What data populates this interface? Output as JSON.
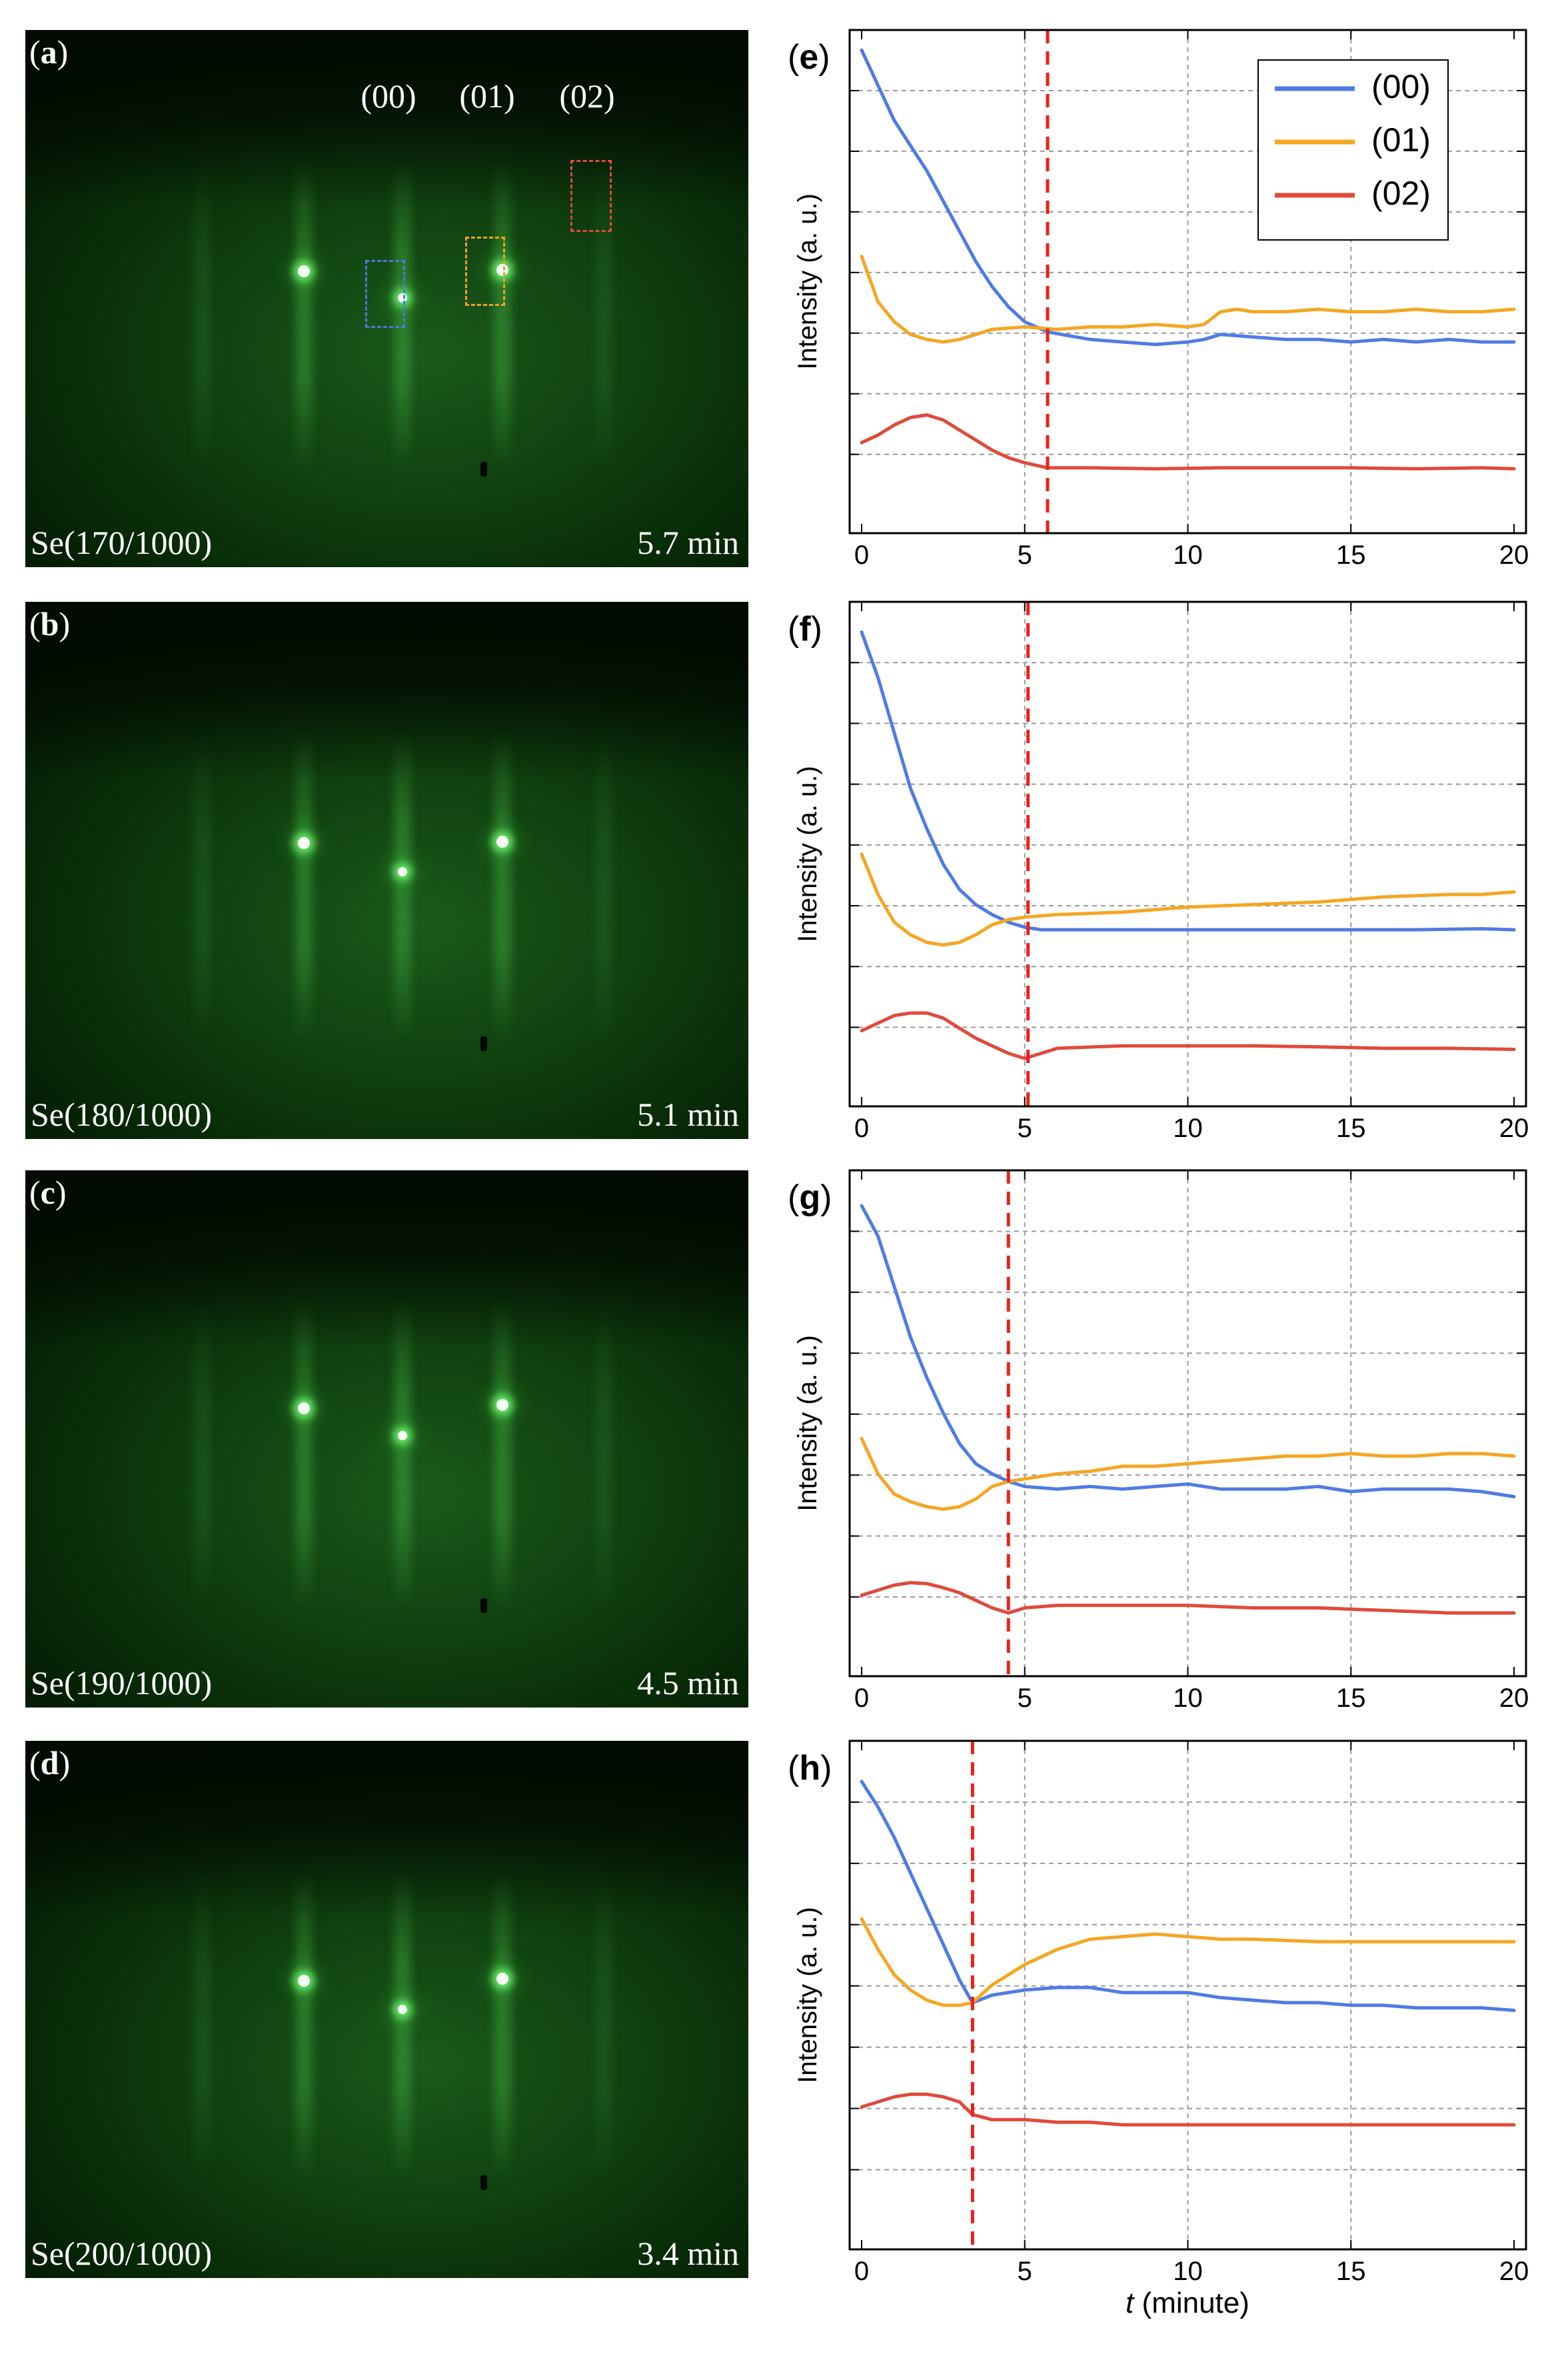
{
  "figure": {
    "rheed_panels": [
      {
        "label_open": "(",
        "label_letter": "a",
        "label_close": ")",
        "condition": "Se(170/1000)",
        "time": "5.7 min",
        "orders": [
          "(00)",
          "(01)",
          "(02)"
        ],
        "roi_colors": {
          "(00)": "#4a78e0",
          "(01)": "#f2a020",
          "(02)": "#e04a3a"
        }
      },
      {
        "label_open": "(",
        "label_letter": "b",
        "label_close": ")",
        "condition": "Se(180/1000)",
        "time": "5.1 min"
      },
      {
        "label_open": "(",
        "label_letter": "c",
        "label_close": ")",
        "condition": "Se(190/1000)",
        "time": "4.5 min"
      },
      {
        "label_open": "(",
        "label_letter": "d",
        "label_close": ")",
        "condition": "Se(200/1000)",
        "time": "3.4 min"
      }
    ],
    "shared_x_label_italic": "t",
    "shared_x_label_rest": " (minute)"
  },
  "chart_data": [
    {
      "type": "line",
      "panel": "(e)",
      "ylabel": "Intensity (a. u.)",
      "xlim": [
        0,
        20
      ],
      "ylim": [
        0,
        100
      ],
      "x_ticks": [
        0,
        5,
        10,
        15,
        20
      ],
      "grid": true,
      "marker_x": 5.7,
      "marker_color": "#e8231c",
      "legend": [
        "(00)",
        "(01)",
        "(02)"
      ],
      "legend_position": "top-right",
      "series": [
        {
          "name": "(00)",
          "color": "#4f7be3",
          "x": [
            0,
            0.5,
            1,
            1.5,
            2,
            2.5,
            3,
            3.5,
            4,
            4.5,
            5,
            5.7,
            7,
            8,
            9,
            10,
            10.5,
            11,
            12,
            13,
            14,
            15,
            16,
            17,
            18,
            19,
            20
          ],
          "y": [
            96,
            89,
            82,
            77,
            72,
            66,
            60,
            54,
            49,
            45,
            42,
            40,
            38.5,
            38,
            37.5,
            38,
            38.5,
            39.5,
            39,
            38.5,
            38.5,
            38,
            38.5,
            38,
            38.5,
            38,
            38
          ]
        },
        {
          "name": "(01)",
          "color": "#f5a623",
          "x": [
            0,
            0.5,
            1,
            1.5,
            2,
            2.5,
            3,
            3.5,
            4,
            5,
            6,
            7,
            8,
            9,
            10,
            10.5,
            11,
            11.5,
            12,
            13,
            14,
            15,
            16,
            17,
            18,
            19,
            20
          ],
          "y": [
            55,
            46,
            42,
            39.5,
            38.5,
            38,
            38.5,
            39.5,
            40.5,
            41,
            40.5,
            41,
            41,
            41.5,
            41,
            41.5,
            44,
            44.5,
            44,
            44,
            44.5,
            44,
            44,
            44.5,
            44,
            44,
            44.5
          ]
        },
        {
          "name": "(02)",
          "color": "#e04a3a",
          "x": [
            0,
            0.5,
            1,
            1.5,
            2,
            2.5,
            3,
            3.5,
            4,
            4.5,
            5,
            5.7,
            7,
            9,
            11,
            13,
            15,
            17,
            19,
            20
          ],
          "y": [
            18,
            19.5,
            21.5,
            23,
            23.5,
            22.5,
            20.5,
            18.5,
            16.5,
            15,
            14,
            13,
            13,
            12.8,
            13,
            13,
            13,
            12.8,
            13,
            12.8
          ]
        }
      ]
    },
    {
      "type": "line",
      "panel": "(f)",
      "ylabel": "Intensity (a. u.)",
      "xlim": [
        0,
        20
      ],
      "ylim": [
        0,
        100
      ],
      "x_ticks": [
        0,
        5,
        10,
        15,
        20
      ],
      "grid": true,
      "marker_x": 5.1,
      "marker_color": "#e8231c",
      "series": [
        {
          "name": "(00)",
          "color": "#4f7be3",
          "x": [
            0,
            0.5,
            1,
            1.5,
            2,
            2.5,
            3,
            3.5,
            4,
            4.5,
            5,
            5.5,
            7,
            9,
            11,
            13,
            15,
            17,
            19,
            20
          ],
          "y": [
            94,
            85,
            74,
            63,
            55,
            48,
            43,
            40,
            38,
            36.5,
            35.5,
            35,
            35,
            35,
            35,
            35,
            35,
            35,
            35.2,
            35
          ]
        },
        {
          "name": "(01)",
          "color": "#f5a623",
          "x": [
            0,
            0.5,
            1,
            1.5,
            2,
            2.5,
            3,
            3.5,
            4,
            4.5,
            5,
            6,
            8,
            10,
            12,
            14,
            16,
            18,
            19,
            20
          ],
          "y": [
            50,
            42,
            36.5,
            34,
            32.5,
            32,
            32.5,
            34,
            36,
            37,
            37.5,
            38,
            38.5,
            39.5,
            40,
            40.5,
            41.5,
            42,
            42,
            42.5
          ]
        },
        {
          "name": "(02)",
          "color": "#e04a3a",
          "x": [
            0,
            0.5,
            1,
            1.5,
            2,
            2.5,
            3,
            3.5,
            4,
            4.5,
            5,
            6,
            8,
            10,
            12,
            14,
            16,
            18,
            20
          ],
          "y": [
            15,
            16.5,
            18,
            18.5,
            18.5,
            17.5,
            15.5,
            13.5,
            12,
            10.5,
            9.5,
            11.5,
            12,
            12,
            12,
            11.8,
            11.5,
            11.5,
            11.3
          ]
        }
      ]
    },
    {
      "type": "line",
      "panel": "(g)",
      "ylabel": "Intensity (a. u.)",
      "xlim": [
        0,
        20
      ],
      "ylim": [
        0,
        100
      ],
      "x_ticks": [
        0,
        5,
        10,
        15,
        20
      ],
      "grid": true,
      "marker_x": 4.5,
      "marker_color": "#e8231c",
      "series": [
        {
          "name": "(00)",
          "color": "#4f7be3",
          "x": [
            0,
            0.5,
            1,
            1.5,
            2,
            2.5,
            3,
            3.5,
            4,
            4.5,
            5,
            6,
            7,
            8,
            9,
            10,
            11,
            12,
            13,
            14,
            15,
            16,
            17,
            18,
            19,
            20
          ],
          "y": [
            93,
            87,
            77,
            67,
            59,
            52,
            46,
            42,
            40,
            38.5,
            37.5,
            37,
            37.5,
            37,
            37.5,
            38,
            37,
            37,
            37,
            37.5,
            36.5,
            37,
            37,
            37,
            36.5,
            35.5
          ]
        },
        {
          "name": "(01)",
          "color": "#f5a623",
          "x": [
            0,
            0.5,
            1,
            1.5,
            2,
            2.5,
            3,
            3.5,
            4,
            4.5,
            5,
            6,
            7,
            8,
            9,
            10,
            11,
            12,
            13,
            14,
            15,
            16,
            17,
            18,
            19,
            20
          ],
          "y": [
            47,
            40,
            36,
            34.5,
            33.5,
            33,
            33.5,
            35,
            37.5,
            38.5,
            39,
            40,
            40.5,
            41.5,
            41.5,
            42,
            42.5,
            43,
            43.5,
            43.5,
            44,
            43.5,
            43.5,
            44,
            44,
            43.5
          ]
        },
        {
          "name": "(02)",
          "color": "#e04a3a",
          "x": [
            0,
            0.5,
            1,
            1.5,
            2,
            2.5,
            3,
            3.5,
            4,
            4.5,
            5,
            6,
            8,
            10,
            12,
            14,
            16,
            18,
            20
          ],
          "y": [
            16,
            17,
            18,
            18.5,
            18.3,
            17.5,
            16.5,
            15,
            13.5,
            12.5,
            13.5,
            14,
            14,
            14,
            13.5,
            13.5,
            13,
            12.5,
            12.5
          ]
        }
      ]
    },
    {
      "type": "line",
      "panel": "(h)",
      "ylabel": "Intensity (a. u.)",
      "xlim": [
        0,
        20
      ],
      "ylim": [
        0,
        100
      ],
      "x_ticks": [
        0,
        5,
        10,
        15,
        20
      ],
      "grid": true,
      "marker_x": 3.4,
      "marker_color": "#e8231c",
      "series": [
        {
          "name": "(00)",
          "color": "#4f7be3",
          "x": [
            0,
            0.5,
            1,
            1.5,
            2,
            2.5,
            3,
            3.4,
            4,
            5,
            6,
            7,
            8,
            9,
            10,
            11,
            12,
            13,
            14,
            15,
            16,
            17,
            18,
            19,
            20
          ],
          "y": [
            92,
            87,
            81,
            74,
            67,
            60,
            53,
            48.5,
            50,
            51,
            51.5,
            51.5,
            50.5,
            50.5,
            50.5,
            49.5,
            49,
            48.5,
            48.5,
            48,
            48,
            47.5,
            47.5,
            47.5,
            47
          ]
        },
        {
          "name": "(01)",
          "color": "#f5a623",
          "x": [
            0,
            0.5,
            1,
            1.5,
            2,
            2.5,
            3,
            3.4,
            4,
            5,
            6,
            7,
            8,
            9,
            10,
            11,
            12,
            14,
            16,
            18,
            20
          ],
          "y": [
            65,
            59,
            54,
            51,
            49,
            48,
            48,
            48.5,
            52,
            56,
            59,
            61,
            61.5,
            62,
            61.5,
            61,
            61,
            60.5,
            60.5,
            60.5,
            60.5
          ]
        },
        {
          "name": "(02)",
          "color": "#e04a3a",
          "x": [
            0,
            0.5,
            1,
            1.5,
            2,
            2.5,
            3,
            3.4,
            4,
            5,
            6,
            7,
            8,
            10,
            12,
            14,
            16,
            18,
            20
          ],
          "y": [
            28,
            29,
            30,
            30.5,
            30.5,
            30,
            29,
            26.5,
            25.5,
            25.5,
            25,
            25,
            24.5,
            24.5,
            24.5,
            24.5,
            24.5,
            24.5,
            24.5
          ]
        }
      ]
    }
  ]
}
